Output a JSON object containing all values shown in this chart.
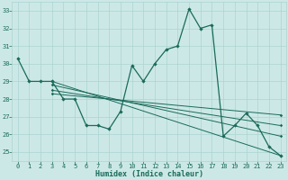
{
  "xlabel": "Humidex (Indice chaleur)",
  "background_color": "#cce8e6",
  "grid_color": "#aad4d0",
  "line_color": "#1a6b5a",
  "xlim": [
    -0.5,
    23.5
  ],
  "ylim": [
    24.5,
    33.5
  ],
  "yticks": [
    25,
    26,
    27,
    28,
    29,
    30,
    31,
    32,
    33
  ],
  "xticks": [
    0,
    1,
    2,
    3,
    4,
    5,
    6,
    7,
    8,
    9,
    10,
    11,
    12,
    13,
    14,
    15,
    16,
    17,
    18,
    19,
    20,
    21,
    22,
    23
  ],
  "main_x": [
    0,
    1,
    2,
    3,
    4,
    5,
    6,
    7,
    8,
    9,
    10,
    11,
    12,
    13,
    14,
    15,
    16,
    17,
    18,
    19,
    20,
    21,
    22,
    23
  ],
  "main_y": [
    30.3,
    29.0,
    29.0,
    29.0,
    28.0,
    28.0,
    26.5,
    26.5,
    26.3,
    27.3,
    29.9,
    29.0,
    30.0,
    30.8,
    31.0,
    33.1,
    32.0,
    32.2,
    25.9,
    26.5,
    27.2,
    26.5,
    25.3,
    24.8
  ],
  "fan_lines": [
    {
      "x": [
        3,
        23
      ],
      "y": [
        29.0,
        24.8
      ]
    },
    {
      "x": [
        3,
        23
      ],
      "y": [
        28.8,
        25.9
      ]
    },
    {
      "x": [
        3,
        23
      ],
      "y": [
        28.5,
        26.5
      ]
    },
    {
      "x": [
        3,
        23
      ],
      "y": [
        28.3,
        27.1
      ]
    }
  ]
}
